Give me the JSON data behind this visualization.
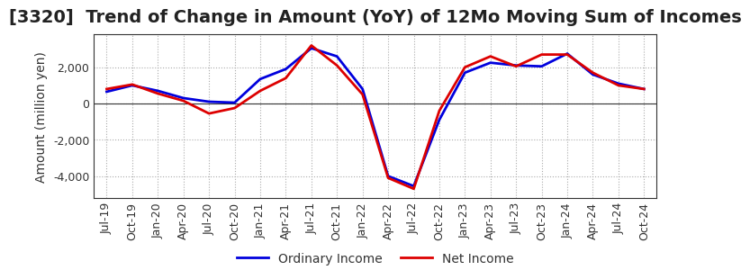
{
  "title": "[3320]  Trend of Change in Amount (YoY) of 12Mo Moving Sum of Incomes",
  "ylabel": "Amount (million yen)",
  "title_fontsize": 14,
  "label_fontsize": 10,
  "tick_fontsize": 9,
  "background_color": "#ffffff",
  "plot_bg_color": "#ffffff",
  "grid_color": "#aaaaaa",
  "ordinary_income_color": "#0000dd",
  "net_income_color": "#dd0000",
  "ordinary_income_label": "Ordinary Income",
  "net_income_label": "Net Income",
  "ylim": [
    -5200,
    3800
  ],
  "yticks": [
    -4000,
    -2000,
    0,
    2000
  ],
  "x_labels": [
    "Jul-19",
    "Oct-19",
    "Jan-20",
    "Apr-20",
    "Jul-20",
    "Oct-20",
    "Jan-21",
    "Apr-21",
    "Jul-21",
    "Oct-21",
    "Jan-22",
    "Apr-22",
    "Jul-22",
    "Oct-22",
    "Jan-23",
    "Apr-23",
    "Jul-23",
    "Oct-23",
    "Jan-24",
    "Apr-24",
    "Jul-24",
    "Oct-24"
  ],
  "ordinary_income": [
    650,
    1000,
    700,
    300,
    100,
    50,
    1350,
    1900,
    3050,
    2600,
    800,
    -4000,
    -4550,
    -900,
    1700,
    2250,
    2100,
    2050,
    2750,
    1600,
    1100,
    800
  ],
  "net_income": [
    800,
    1050,
    550,
    150,
    -550,
    -250,
    700,
    1400,
    3200,
    2100,
    500,
    -4100,
    -4700,
    -400,
    2000,
    2600,
    2050,
    2700,
    2700,
    1700,
    1000,
    800
  ]
}
